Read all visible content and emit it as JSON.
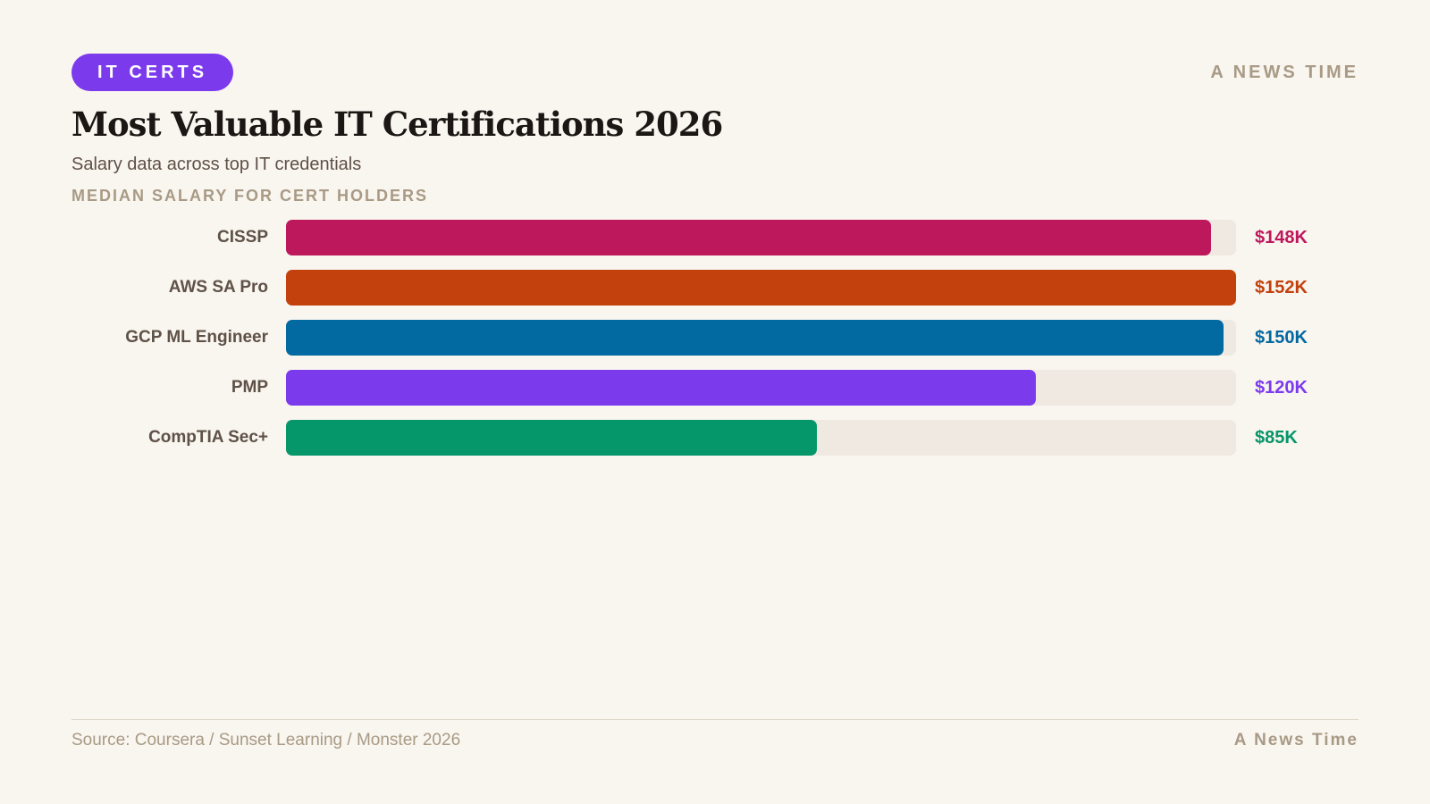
{
  "tag": "IT CERTS",
  "brand": "A NEWS TIME",
  "chart_data": {
    "type": "bar",
    "orientation": "horizontal",
    "title": "Most Valuable IT Certifications 2026",
    "subtitle": "Salary data across top IT credentials",
    "xlabel": "MEDIAN SALARY FOR CERT HOLDERS",
    "unit": "$K",
    "xlim": [
      0,
      152
    ],
    "grid": false,
    "categories": [
      "CISSP",
      "AWS SA Pro",
      "GCP ML Engineer",
      "PMP",
      "CompTIA Sec+"
    ],
    "values": [
      148,
      152,
      150,
      120,
      85
    ],
    "data_labels": [
      "$148K",
      "$152K",
      "$150K",
      "$120K",
      "$85K"
    ],
    "colors": [
      "#be185d",
      "#c2410c",
      "#0369a1",
      "#7c3aed",
      "#059669"
    ]
  },
  "footer": {
    "source": "Source: Coursera / Sunset Learning / Monster 2026",
    "brand": "A News Time"
  }
}
